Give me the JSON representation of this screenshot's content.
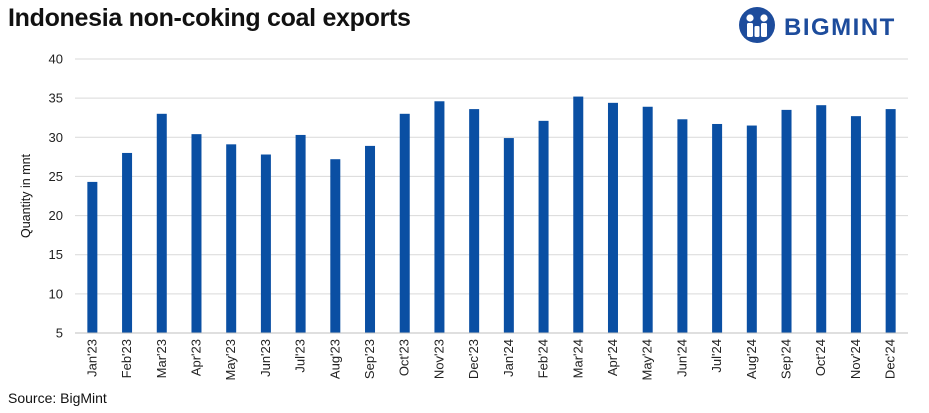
{
  "header": {
    "title": "Indonesia non-coking coal exports",
    "brand": "BIGMINT"
  },
  "footer": {
    "source": "Source: BigMint"
  },
  "colors": {
    "bar": "#0a4fa3",
    "grid": "#d9d9d9",
    "brand": "#1d4c9c"
  },
  "chart_data": {
    "type": "bar",
    "title": "Indonesia non-coking coal exports",
    "xlabel": "",
    "ylabel": "Quantity in mnt",
    "ylim": [
      5,
      40
    ],
    "yticks": [
      5,
      10,
      15,
      20,
      25,
      30,
      35,
      40
    ],
    "grid": true,
    "categories": [
      "Jan'23",
      "Feb'23",
      "Mar'23",
      "Apr'23",
      "May'23",
      "Jun'23",
      "Jul'23",
      "Aug'23",
      "Sep'23",
      "Oct'23",
      "Nov'23",
      "Dec'23",
      "Jan'24",
      "Feb'24",
      "Mar'24",
      "Apr'24",
      "May'24",
      "Jun'24",
      "Jul'24",
      "Aug'24",
      "Sep'24",
      "Oct'24",
      "Nov'24",
      "Dec'24"
    ],
    "values": [
      24.3,
      28.0,
      33.0,
      30.4,
      29.1,
      27.8,
      30.3,
      27.2,
      28.9,
      33.0,
      34.6,
      33.6,
      29.9,
      32.1,
      35.2,
      34.4,
      33.9,
      32.3,
      31.7,
      31.5,
      33.5,
      34.1,
      32.7,
      33.6
    ]
  }
}
